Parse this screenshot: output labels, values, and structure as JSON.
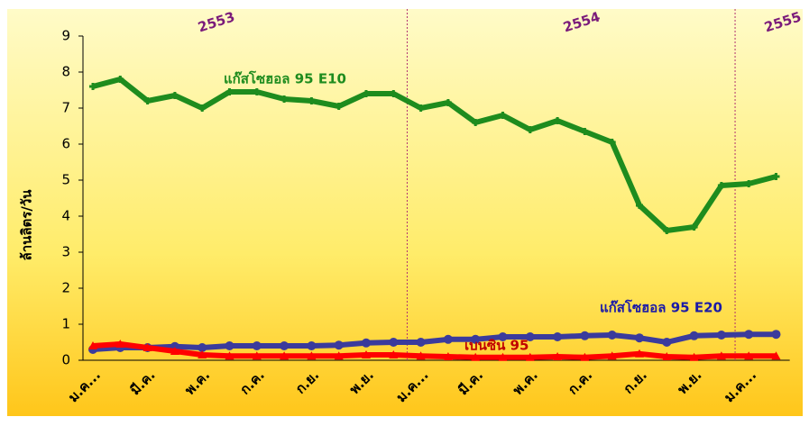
{
  "chart_data": {
    "type": "line",
    "ylabel": "ล้านลิตร/วัน",
    "categories": [
      "ม.ค...",
      null,
      "มี.ค.",
      null,
      "พ.ค.",
      null,
      "ก.ค.",
      null,
      "ก.ย.",
      null,
      "พ.ย.",
      null,
      "ม.ค...",
      null,
      "มี.ค.",
      null,
      "พ.ค.",
      null,
      "ก.ค.",
      null,
      "ก.ย.",
      null,
      "พ.ย.",
      null,
      "ม.ค...",
      null
    ],
    "annotations": [
      "2553",
      "2554",
      "2555"
    ],
    "series": [
      {
        "name": "แก๊สโซฮอล 95 E10",
        "color": "#1e8c1e",
        "label_color": "#1e8c1e",
        "marker": "star",
        "values": [
          7.6,
          7.8,
          7.2,
          7.35,
          7.0,
          7.45,
          7.45,
          7.25,
          7.2,
          7.05,
          7.4,
          7.4,
          7.0,
          7.15,
          6.6,
          6.8,
          6.4,
          6.65,
          6.35,
          6.05,
          4.3,
          3.6,
          3.7,
          4.85,
          4.9,
          5.1
        ]
      },
      {
        "name": "แก๊สโซฮอล 95 E20",
        "color": "#3b3b9c",
        "label_color": "#1a1aa8",
        "marker": "circle",
        "values": [
          0.3,
          0.35,
          0.35,
          0.38,
          0.35,
          0.4,
          0.4,
          0.4,
          0.4,
          0.42,
          0.48,
          0.5,
          0.5,
          0.58,
          0.58,
          0.65,
          0.65,
          0.65,
          0.68,
          0.7,
          0.62,
          0.5,
          0.68,
          0.7,
          0.72,
          0.72
        ]
      },
      {
        "name": "เบนซิน 95",
        "color": "#ff0000",
        "label_color": "#c00000",
        "marker": "triangle",
        "values": [
          0.4,
          0.45,
          0.35,
          0.25,
          0.15,
          0.12,
          0.12,
          0.12,
          0.12,
          0.12,
          0.15,
          0.15,
          0.12,
          0.1,
          0.08,
          0.08,
          0.08,
          0.1,
          0.08,
          0.12,
          0.18,
          0.1,
          0.08,
          0.12,
          0.12,
          0.12
        ]
      }
    ],
    "ylim": [
      0,
      9
    ],
    "yticks": [
      0,
      1,
      2,
      3,
      4,
      5,
      6,
      7,
      8,
      9
    ],
    "grid": false
  }
}
